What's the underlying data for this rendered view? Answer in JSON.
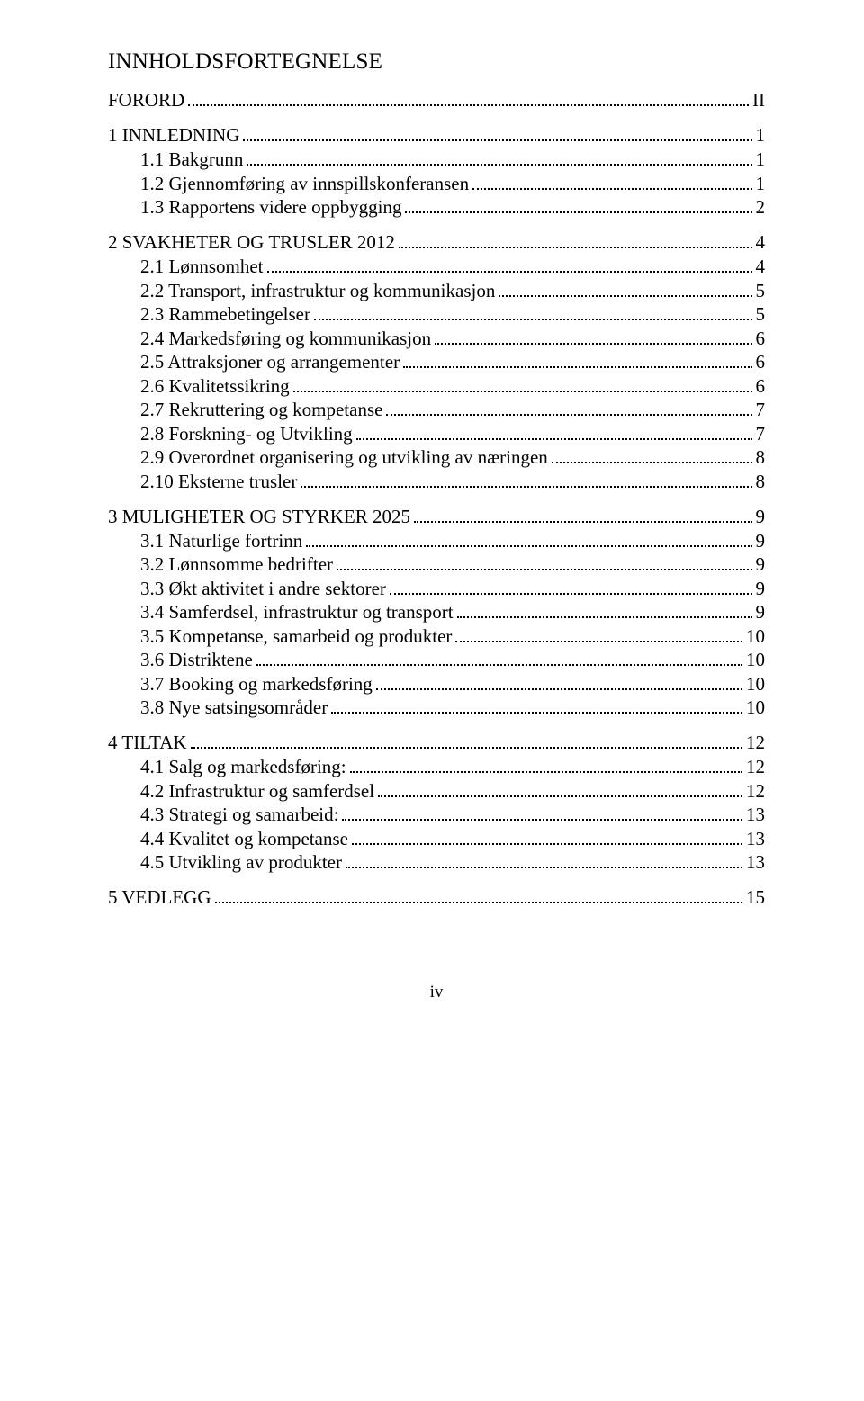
{
  "title": "INNHOLDSFORTEGNELSE",
  "footer": "iv",
  "toc": [
    {
      "level": 1,
      "label": "FORORD",
      "page": "II"
    },
    {
      "level": 1,
      "label": "1   INNLEDNING",
      "page": "1"
    },
    {
      "level": 2,
      "label": "1.1 Bakgrunn",
      "page": "1"
    },
    {
      "level": 2,
      "label": "1.2 Gjennomføring av innspillskonferansen",
      "page": "1"
    },
    {
      "level": 2,
      "label": "1.3 Rapportens videre oppbygging",
      "page": "2"
    },
    {
      "level": 1,
      "label": "2   SVAKHETER OG TRUSLER 2012",
      "page": "4"
    },
    {
      "level": 2,
      "label": "2.1 Lønnsomhet",
      "page": "4"
    },
    {
      "level": 2,
      "label": "2.2 Transport, infrastruktur og kommunikasjon",
      "page": "5"
    },
    {
      "level": 2,
      "label": "2.3 Rammebetingelser",
      "page": "5"
    },
    {
      "level": 2,
      "label": "2.4 Markedsføring og kommunikasjon",
      "page": "6"
    },
    {
      "level": 2,
      "label": "2.5 Attraksjoner og arrangementer",
      "page": "6"
    },
    {
      "level": 2,
      "label": "2.6 Kvalitetssikring",
      "page": "6"
    },
    {
      "level": 2,
      "label": "2.7 Rekruttering og kompetanse",
      "page": "7"
    },
    {
      "level": 2,
      "label": "2.8 Forskning- og Utvikling",
      "page": "7"
    },
    {
      "level": 2,
      "label": "2.9 Overordnet organisering og utvikling av næringen",
      "page": "8"
    },
    {
      "level": 2,
      "label": "2.10 Eksterne trusler",
      "page": "8"
    },
    {
      "level": 1,
      "label": "3   MULIGHETER OG STYRKER 2025",
      "page": "9"
    },
    {
      "level": 2,
      "label": "3.1 Naturlige fortrinn",
      "page": "9"
    },
    {
      "level": 2,
      "label": "3.2 Lønnsomme bedrifter",
      "page": "9"
    },
    {
      "level": 2,
      "label": "3.3 Økt aktivitet i andre sektorer",
      "page": "9"
    },
    {
      "level": 2,
      "label": "3.4 Samferdsel, infrastruktur og transport",
      "page": "9"
    },
    {
      "level": 2,
      "label": "3.5 Kompetanse, samarbeid og produkter",
      "page": "10"
    },
    {
      "level": 2,
      "label": "3.6 Distriktene",
      "page": "10"
    },
    {
      "level": 2,
      "label": "3.7 Booking og markedsføring",
      "page": "10"
    },
    {
      "level": 2,
      "label": "3.8 Nye satsingsområder",
      "page": "10"
    },
    {
      "level": 1,
      "label": "4   TILTAK",
      "page": "12"
    },
    {
      "level": 2,
      "label": "4.1 Salg og markedsføring:",
      "page": "12"
    },
    {
      "level": 2,
      "label": "4.2 Infrastruktur og samferdsel",
      "page": "12"
    },
    {
      "level": 2,
      "label": "4.3 Strategi og samarbeid:",
      "page": "13"
    },
    {
      "level": 2,
      "label": "4.4 Kvalitet og kompetanse",
      "page": "13"
    },
    {
      "level": 2,
      "label": "4.5 Utvikling av produkter",
      "page": "13"
    },
    {
      "level": 1,
      "label": "5   VEDLEGG",
      "page": "15"
    }
  ]
}
